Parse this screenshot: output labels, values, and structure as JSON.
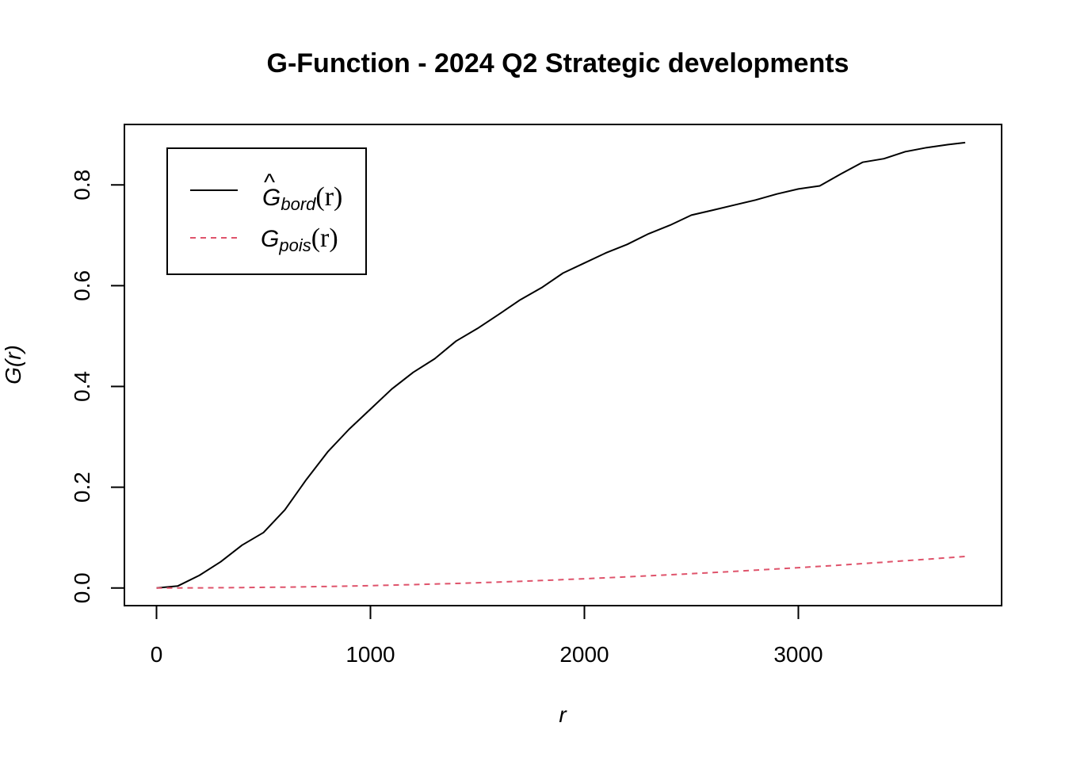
{
  "chart_data": {
    "type": "line",
    "title": "G-Function - 2024 Q2 Strategic developments",
    "xlabel": "r",
    "ylabel": "G(r)",
    "xlim": [
      -150,
      3950
    ],
    "ylim": [
      -0.035,
      0.92
    ],
    "x_ticks": [
      0,
      1000,
      2000,
      3000
    ],
    "x_tick_labels": [
      "0",
      "1000",
      "2000",
      "3000"
    ],
    "y_ticks": [
      0,
      0.2,
      0.4,
      0.6,
      0.8
    ],
    "y_tick_labels": [
      "0.0",
      "0.2",
      "0.4",
      "0.6",
      "0.8"
    ],
    "grid": false,
    "legend_position": "top-left",
    "series": [
      {
        "legend": {
          "base": "G",
          "hat": "^",
          "sub": "bord",
          "arg": "(r)"
        },
        "color": "#000000",
        "dash": "solid",
        "x": [
          0,
          100,
          200,
          300,
          400,
          500,
          600,
          700,
          800,
          900,
          1000,
          1100,
          1200,
          1300,
          1400,
          1500,
          1600,
          1700,
          1800,
          1900,
          2000,
          2100,
          2200,
          2300,
          2400,
          2500,
          2600,
          2700,
          2800,
          2900,
          3000,
          3100,
          3200,
          3300,
          3400,
          3500,
          3600,
          3700,
          3780
        ],
        "y": [
          0.0,
          0.004,
          0.025,
          0.052,
          0.085,
          0.11,
          0.155,
          0.215,
          0.27,
          0.315,
          0.355,
          0.395,
          0.428,
          0.455,
          0.49,
          0.515,
          0.543,
          0.572,
          0.596,
          0.625,
          0.645,
          0.665,
          0.682,
          0.703,
          0.72,
          0.74,
          0.75,
          0.76,
          0.77,
          0.782,
          0.792,
          0.798,
          0.822,
          0.845,
          0.852,
          0.866,
          0.874,
          0.88,
          0.884
        ]
      },
      {
        "legend": {
          "base": "G",
          "hat": "",
          "sub": "pois",
          "arg": "(r)"
        },
        "color": "#DF536B",
        "dash": "dashed",
        "x": [
          0,
          200,
          400,
          600,
          800,
          1000,
          1200,
          1400,
          1600,
          1800,
          2000,
          2200,
          2400,
          2600,
          2800,
          3000,
          3200,
          3400,
          3600,
          3780
        ],
        "y": [
          0.0,
          0.0002,
          0.0008,
          0.0017,
          0.003,
          0.0047,
          0.0067,
          0.0091,
          0.0118,
          0.0149,
          0.0183,
          0.0221,
          0.0262,
          0.0306,
          0.0353,
          0.0403,
          0.0456,
          0.0512,
          0.0571,
          0.0626
        ]
      }
    ]
  }
}
